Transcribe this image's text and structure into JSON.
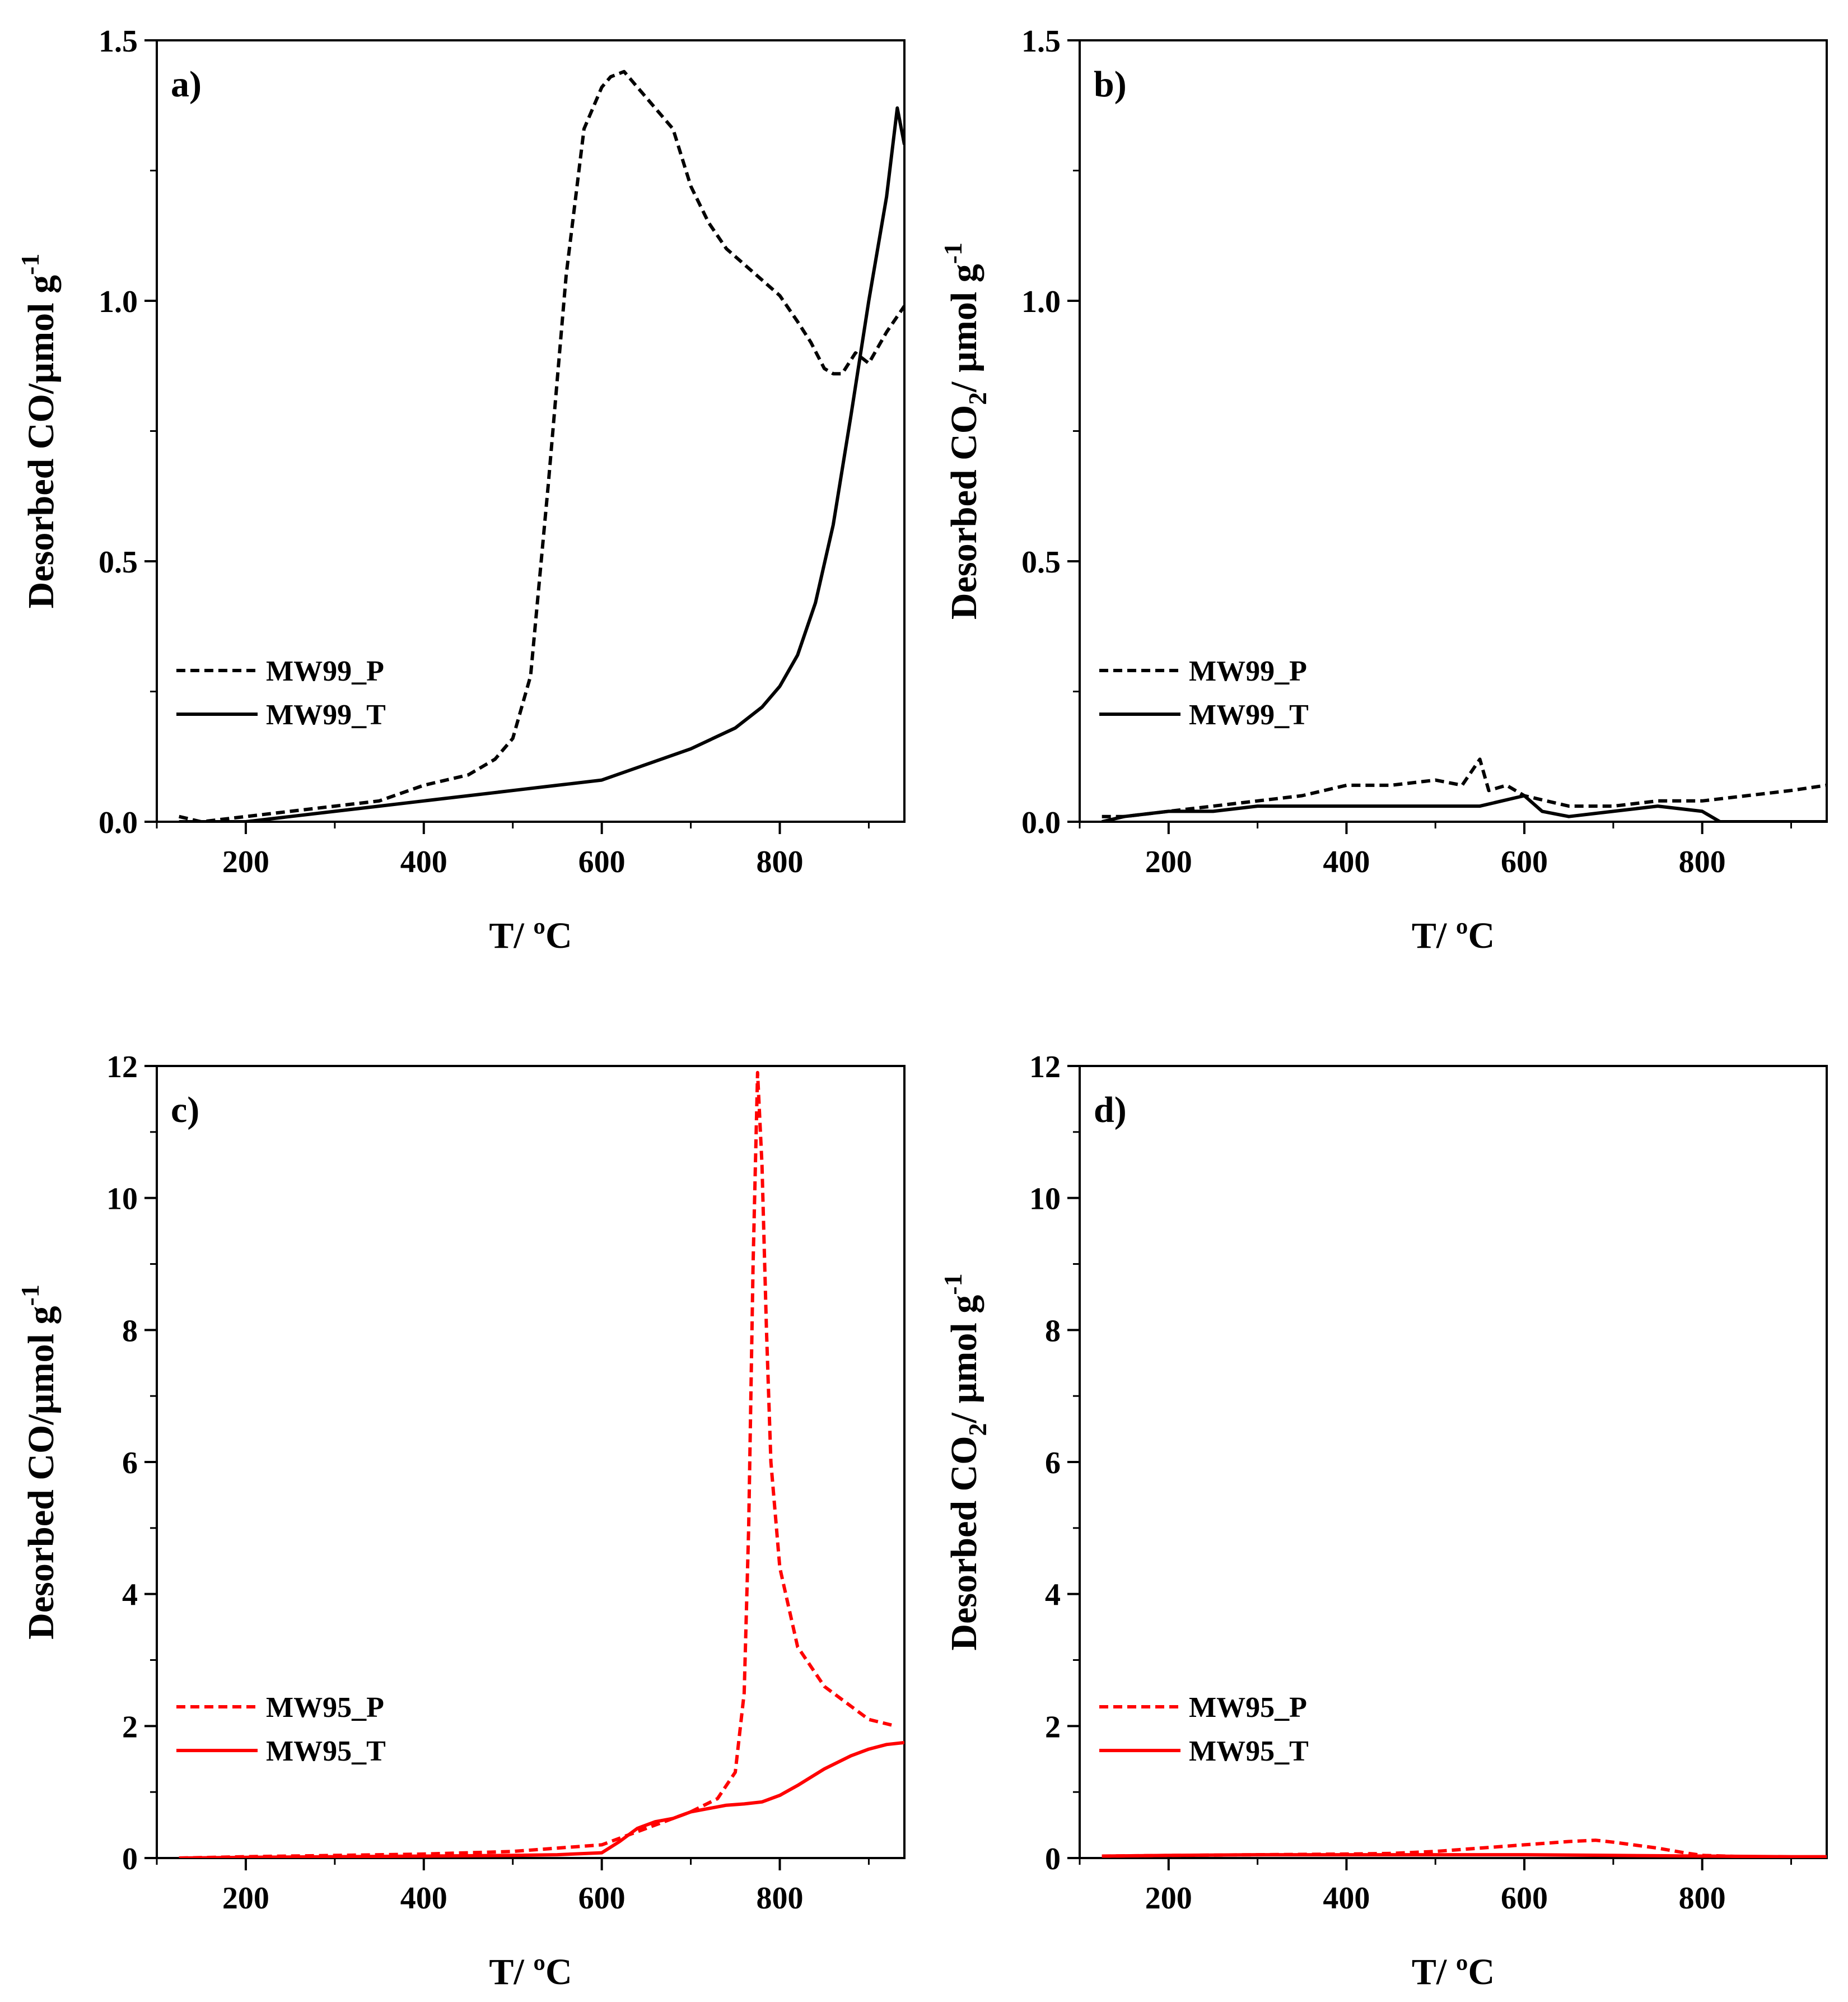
{
  "figure": {
    "panels": [
      {
        "id": "a",
        "chart_data": {
          "type": "line",
          "panel_label": "a)",
          "xlabel": "T/ ºC",
          "ylabel_parts": [
            "Desorbed CO/µmol g",
            "-1"
          ],
          "xlim": [
            100,
            940
          ],
          "ylim": [
            0,
            1.5
          ],
          "x_ticks": [
            200,
            400,
            600,
            800
          ],
          "y_ticks": [
            0.0,
            0.5,
            1.0,
            1.5
          ],
          "y_tick_labels": [
            "0.0",
            "0.5",
            "1.0",
            "1.5"
          ],
          "y_minor_step": 0.25,
          "legend": {
            "placement": "lower-left"
          },
          "series": [
            {
              "name": "MW99_P",
              "color": "#000000",
              "style": "dashed",
              "x": [
                125,
                150,
                200,
                250,
                300,
                350,
                400,
                450,
                480,
                500,
                520,
                540,
                560,
                580,
                600,
                610,
                625,
                640,
                660,
                680,
                700,
                720,
                740,
                760,
                780,
                800,
                820,
                835,
                850,
                860,
                870,
                885,
                900,
                920,
                940
              ],
              "y": [
                0.01,
                0.0,
                0.01,
                0.02,
                0.03,
                0.04,
                0.07,
                0.09,
                0.12,
                0.16,
                0.28,
                0.65,
                1.05,
                1.33,
                1.41,
                1.43,
                1.44,
                1.41,
                1.37,
                1.33,
                1.22,
                1.15,
                1.1,
                1.07,
                1.04,
                1.01,
                0.96,
                0.92,
                0.87,
                0.86,
                0.86,
                0.9,
                0.88,
                0.94,
                0.99
              ]
            },
            {
              "name": "MW99_T",
              "color": "#000000",
              "style": "solid",
              "x": [
                125,
                150,
                200,
                250,
                300,
                350,
                400,
                450,
                500,
                550,
                600,
                650,
                700,
                750,
                780,
                800,
                820,
                840,
                860,
                880,
                900,
                920,
                932,
                940
              ],
              "y": [
                0.0,
                0.0,
                0.0,
                0.01,
                0.02,
                0.03,
                0.04,
                0.05,
                0.06,
                0.07,
                0.08,
                0.11,
                0.14,
                0.18,
                0.22,
                0.26,
                0.32,
                0.42,
                0.57,
                0.78,
                1.0,
                1.2,
                1.37,
                1.3
              ]
            }
          ]
        }
      },
      {
        "id": "b",
        "chart_data": {
          "type": "line",
          "panel_label": "b)",
          "xlabel": "T/ ºC",
          "ylabel_parts": [
            "Desorbed CO",
            "2",
            "/ µmol g",
            "-1"
          ],
          "xlim": [
            100,
            940
          ],
          "ylim": [
            0,
            1.5
          ],
          "x_ticks": [
            200,
            400,
            600,
            800
          ],
          "y_ticks": [
            0.0,
            0.5,
            1.0,
            1.5
          ],
          "y_tick_labels": [
            "0.0",
            "0.5",
            "1.0",
            "1.5"
          ],
          "y_minor_step": 0.25,
          "legend": {
            "placement": "lower-left"
          },
          "series": [
            {
              "name": "MW99_P",
              "color": "#000000",
              "style": "dashed",
              "x": [
                125,
                150,
                200,
                250,
                300,
                350,
                400,
                450,
                500,
                530,
                550,
                560,
                580,
                600,
                650,
                700,
                750,
                800,
                850,
                900,
                940
              ],
              "y": [
                0.01,
                0.01,
                0.02,
                0.03,
                0.04,
                0.05,
                0.07,
                0.07,
                0.08,
                0.07,
                0.12,
                0.06,
                0.07,
                0.05,
                0.03,
                0.03,
                0.04,
                0.04,
                0.05,
                0.06,
                0.07
              ]
            },
            {
              "name": "MW99_T",
              "color": "#000000",
              "style": "solid",
              "x": [
                125,
                150,
                200,
                250,
                300,
                350,
                400,
                450,
                500,
                550,
                600,
                620,
                650,
                700,
                750,
                800,
                820,
                850,
                900,
                940
              ],
              "y": [
                0.0,
                0.01,
                0.02,
                0.02,
                0.03,
                0.03,
                0.03,
                0.03,
                0.03,
                0.03,
                0.05,
                0.02,
                0.01,
                0.02,
                0.03,
                0.02,
                0.0,
                0.0,
                0.0,
                0.0
              ]
            }
          ]
        }
      },
      {
        "id": "c",
        "chart_data": {
          "type": "line",
          "panel_label": "c)",
          "xlabel": "T/ ºC",
          "ylabel_parts": [
            "Desorbed CO/µmol g",
            "-1"
          ],
          "xlim": [
            100,
            940
          ],
          "ylim": [
            0,
            12
          ],
          "x_ticks": [
            200,
            400,
            600,
            800
          ],
          "y_ticks": [
            0,
            2,
            4,
            6,
            8,
            10,
            12
          ],
          "y_tick_labels": [
            "0",
            "2",
            "4",
            "6",
            "8",
            "10",
            "12"
          ],
          "y_minor_step": 1,
          "legend": {
            "placement": "lower-left"
          },
          "series": [
            {
              "name": "MW95_P",
              "color": "#ff0000",
              "style": "dashed",
              "x": [
                125,
                200,
                300,
                400,
                500,
                550,
                600,
                620,
                650,
                700,
                730,
                750,
                760,
                765,
                770,
                775,
                780,
                785,
                790,
                800,
                820,
                850,
                880,
                900,
                930
              ],
              "y": [
                0.0,
                0.02,
                0.04,
                0.06,
                0.1,
                0.15,
                0.2,
                0.3,
                0.45,
                0.7,
                0.9,
                1.3,
                2.5,
                5.0,
                9.0,
                11.9,
                10.5,
                8.0,
                6.0,
                4.4,
                3.2,
                2.6,
                2.3,
                2.1,
                2.0
              ]
            },
            {
              "name": "MW95_T",
              "color": "#ff0000",
              "style": "solid",
              "x": [
                125,
                200,
                300,
                400,
                500,
                550,
                600,
                620,
                640,
                660,
                680,
                700,
                720,
                740,
                760,
                780,
                800,
                820,
                850,
                880,
                900,
                920,
                940
              ],
              "y": [
                0.0,
                0.01,
                0.02,
                0.03,
                0.04,
                0.05,
                0.08,
                0.25,
                0.45,
                0.55,
                0.6,
                0.7,
                0.75,
                0.8,
                0.82,
                0.85,
                0.95,
                1.1,
                1.35,
                1.55,
                1.65,
                1.72,
                1.75
              ]
            }
          ]
        }
      },
      {
        "id": "d",
        "chart_data": {
          "type": "line",
          "panel_label": "d)",
          "xlabel": "T/ ºC",
          "ylabel_parts": [
            "Desorbed CO",
            "2",
            "/ µmol g",
            "-1"
          ],
          "xlim": [
            100,
            940
          ],
          "ylim": [
            0,
            12
          ],
          "x_ticks": [
            200,
            400,
            600,
            800
          ],
          "y_ticks": [
            0,
            2,
            4,
            6,
            8,
            10,
            12
          ],
          "y_tick_labels": [
            "0",
            "2",
            "4",
            "6",
            "8",
            "10",
            "12"
          ],
          "y_minor_step": 1,
          "legend": {
            "placement": "lower-left"
          },
          "series": [
            {
              "name": "MW95_P",
              "color": "#ff0000",
              "style": "dashed",
              "x": [
                125,
                200,
                300,
                400,
                450,
                500,
                550,
                600,
                650,
                680,
                700,
                750,
                780,
                800,
                850,
                900,
                940
              ],
              "y": [
                0.03,
                0.04,
                0.05,
                0.06,
                0.07,
                0.1,
                0.15,
                0.2,
                0.25,
                0.27,
                0.24,
                0.15,
                0.08,
                0.04,
                0.02,
                0.01,
                0.0
              ]
            },
            {
              "name": "MW95_T",
              "color": "#ff0000",
              "style": "solid",
              "x": [
                125,
                200,
                300,
                400,
                500,
                600,
                700,
                800,
                900,
                940
              ],
              "y": [
                0.03,
                0.04,
                0.05,
                0.05,
                0.05,
                0.05,
                0.04,
                0.03,
                0.02,
                0.02
              ]
            }
          ]
        }
      }
    ]
  }
}
